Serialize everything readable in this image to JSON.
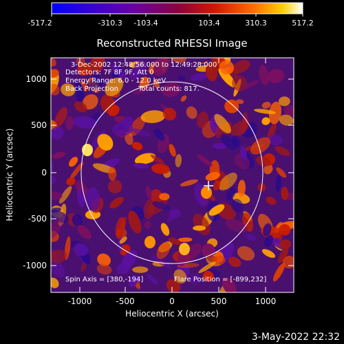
{
  "colorbar": {
    "ticks": [
      "-517.2",
      "-310.3",
      "-103.4",
      "103.4",
      "310.3",
      "517.2"
    ],
    "range": [
      -517.2,
      517.2
    ]
  },
  "title": "Reconstructed RHESSI Image",
  "info": {
    "time_range": "3-Dec-2002 12:48:56.000 to 12:49:28.000",
    "detectors": "Detectors: 7F 8F 9F, Att 0",
    "energy_range": "Energy Range: 6.0 - 12.0 keV",
    "method": "Back Projection",
    "counts": "Total counts: 817."
  },
  "axes": {
    "xlabel": "Heliocentric X (arcsec)",
    "ylabel": "Heliocentric Y (arcsec)",
    "xticks": [
      "-1000",
      "-500",
      "0",
      "500",
      "1000"
    ],
    "yticks": [
      "1000",
      "500",
      "0",
      "-500",
      "-1000"
    ],
    "xrange": [
      -1300,
      1300
    ],
    "yrange": [
      -1300,
      1300
    ]
  },
  "spin_axis": "Spin Axis = [380,-194]",
  "flare_position": "Flare Position = [-899,232]",
  "footer_date": "3-May-2022 22:32",
  "colors": {
    "background": "#000000",
    "text": "#ffffff",
    "colormap": [
      "#0000ff",
      "#5a00b4",
      "#7a0a3c",
      "#c81e00",
      "#ff6400",
      "#ffd200",
      "#ffffff"
    ]
  }
}
